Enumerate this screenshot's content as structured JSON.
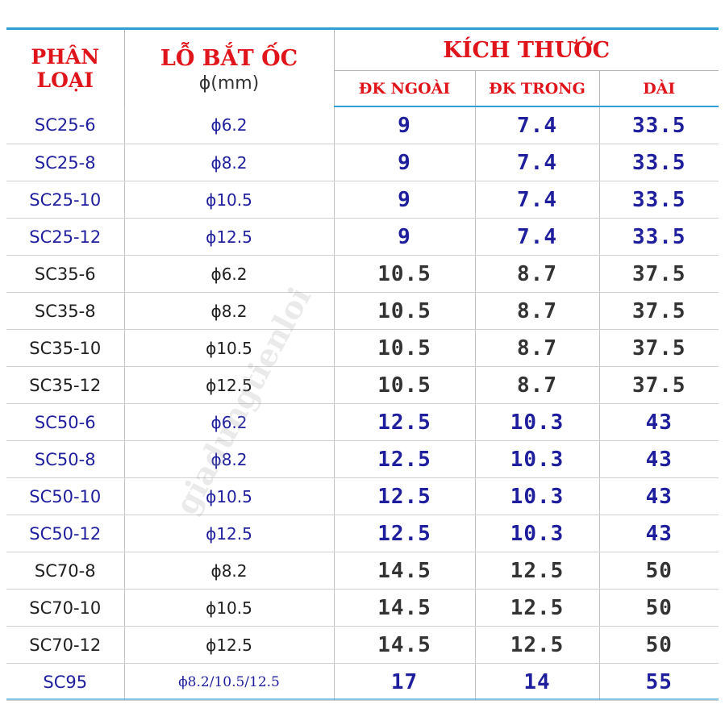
{
  "header": {
    "classification": "PHÂN LOẠI",
    "hole_title": "LỖ BẮT ỐC",
    "hole_unit": "ϕ(mm)",
    "dimensions": "KÍCH THƯỚC",
    "outer_diameter": "ĐK NGOÀI",
    "inner_diameter": "ĐK TRONG",
    "length": "DÀI"
  },
  "rows": [
    {
      "code": "SC25-6",
      "hole": "ϕ6.2",
      "outer": "9",
      "inner": "7.4",
      "length": "33.5",
      "tone": "blue"
    },
    {
      "code": "SC25-8",
      "hole": "ϕ8.2",
      "outer": "9",
      "inner": "7.4",
      "length": "33.5",
      "tone": "blue"
    },
    {
      "code": "SC25-10",
      "hole": "ϕ10.5",
      "outer": "9",
      "inner": "7.4",
      "length": "33.5",
      "tone": "blue"
    },
    {
      "code": "SC25-12",
      "hole": "ϕ12.5",
      "outer": "9",
      "inner": "7.4",
      "length": "33.5",
      "tone": "blue"
    },
    {
      "code": "SC35-6",
      "hole": "ϕ6.2",
      "outer": "10.5",
      "inner": "8.7",
      "length": "37.5",
      "tone": "black"
    },
    {
      "code": "SC35-8",
      "hole": "ϕ8.2",
      "outer": "10.5",
      "inner": "8.7",
      "length": "37.5",
      "tone": "black"
    },
    {
      "code": "SC35-10",
      "hole": "ϕ10.5",
      "outer": "10.5",
      "inner": "8.7",
      "length": "37.5",
      "tone": "black"
    },
    {
      "code": "SC35-12",
      "hole": "ϕ12.5",
      "outer": "10.5",
      "inner": "8.7",
      "length": "37.5",
      "tone": "black"
    },
    {
      "code": "SC50-6",
      "hole": "ϕ6.2",
      "outer": "12.5",
      "inner": "10.3",
      "length": "43",
      "tone": "blue"
    },
    {
      "code": "SC50-8",
      "hole": "ϕ8.2",
      "outer": "12.5",
      "inner": "10.3",
      "length": "43",
      "tone": "blue"
    },
    {
      "code": "SC50-10",
      "hole": "ϕ10.5",
      "outer": "12.5",
      "inner": "10.3",
      "length": "43",
      "tone": "blue"
    },
    {
      "code": "SC50-12",
      "hole": "ϕ12.5",
      "outer": "12.5",
      "inner": "10.3",
      "length": "43",
      "tone": "blue"
    },
    {
      "code": "SC70-8",
      "hole": "ϕ8.2",
      "outer": "14.5",
      "inner": "12.5",
      "length": "50",
      "tone": "black"
    },
    {
      "code": "SC70-10",
      "hole": "ϕ10.5",
      "outer": "14.5",
      "inner": "12.5",
      "length": "50",
      "tone": "black"
    },
    {
      "code": "SC70-12",
      "hole": "ϕ12.5",
      "outer": "14.5",
      "inner": "12.5",
      "length": "50",
      "tone": "black"
    },
    {
      "code": "SC95",
      "hole": "ϕ8.2/10.5/12.5",
      "outer": "17",
      "inner": "14",
      "length": "55",
      "tone": "blue"
    }
  ],
  "watermark": "giadungtienloi",
  "colors": {
    "header_red": "#e0141b",
    "row_blue": "#1f1f9e",
    "row_black": "#202020",
    "rule_blue": "#2e9fd6"
  }
}
